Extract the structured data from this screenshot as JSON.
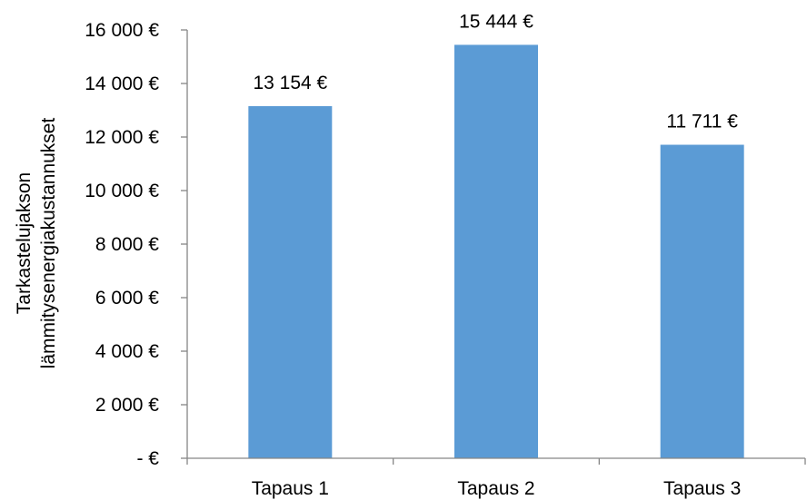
{
  "chart_data": {
    "type": "bar",
    "categories": [
      "Tapaus 1",
      "Tapaus 2",
      "Tapaus 3"
    ],
    "values": [
      13154,
      15444,
      11711
    ],
    "data_labels": [
      "13 154 €",
      "15 444 €",
      "11 711 €"
    ],
    "title": "",
    "xlabel": "",
    "ylabel_lines": [
      "Tarkastelujakson",
      "lämmitysenergiakustannukset"
    ],
    "ylim": [
      0,
      16000
    ],
    "yticks": [
      0,
      2000,
      4000,
      6000,
      8000,
      10000,
      12000,
      14000,
      16000
    ],
    "ytick_labels": [
      "-  €",
      "2 000 €",
      "4 000 €",
      "6 000 €",
      "8 000 €",
      "10 000 €",
      "12 000 €",
      "14 000 €",
      "16 000 €"
    ],
    "grid": false,
    "legend": "none",
    "colors": {
      "bar": "#5b9bd5",
      "axis": "#868686",
      "text": "#000000"
    }
  }
}
